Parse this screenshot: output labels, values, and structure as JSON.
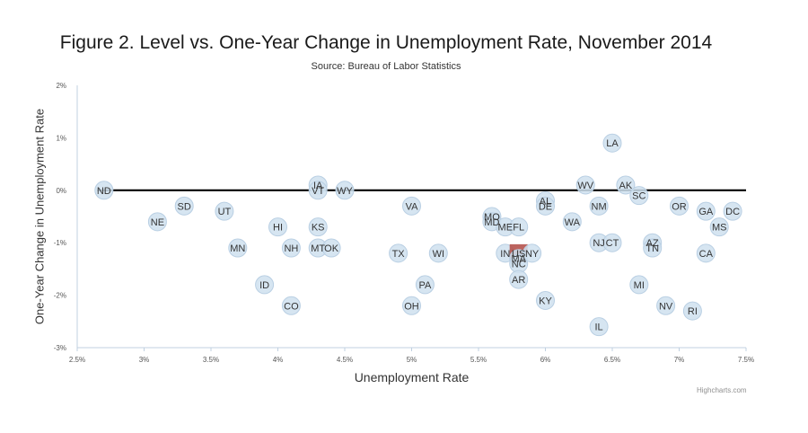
{
  "chart_data": {
    "type": "scatter",
    "title": "Figure 2. Level vs. One-Year Change in Unemployment Rate, November 2014",
    "subtitle": "Source: Bureau of Labor Statistics",
    "xlabel": "Unemployment Rate",
    "ylabel": "One-Year Change in Unemployment Rate",
    "credits": "Highcharts.com",
    "xlim": [
      2.5,
      7.5
    ],
    "ylim": [
      -3,
      2
    ],
    "xticks": [
      2.5,
      3,
      3.5,
      4,
      4.5,
      5,
      5.5,
      6,
      6.5,
      7,
      7.5
    ],
    "xtick_labels": [
      "2.5%",
      "3%",
      "3.5%",
      "4%",
      "4.5%",
      "5%",
      "5.5%",
      "6%",
      "6.5%",
      "7%",
      "7.5%"
    ],
    "yticks": [
      2,
      1,
      0,
      -1,
      -2,
      -3
    ],
    "ytick_labels": [
      "2%",
      "1%",
      "0%",
      "-1%",
      "-2%",
      "-3%"
    ],
    "zero_line": true,
    "grid": false,
    "colors": {
      "point": "#cfe0ee",
      "point_stroke": "#b9cfe3",
      "highlight": "#b5534e",
      "zero_line": "#000000",
      "axis": "#c0d0e0"
    },
    "series": [
      {
        "points": [
          {
            "label": "ND",
            "x": 2.7,
            "y": 0.0
          },
          {
            "label": "NE",
            "x": 3.1,
            "y": -0.6
          },
          {
            "label": "SD",
            "x": 3.3,
            "y": -0.3
          },
          {
            "label": "UT",
            "x": 3.6,
            "y": -0.4
          },
          {
            "label": "MN",
            "x": 3.7,
            "y": -1.1
          },
          {
            "label": "ID",
            "x": 3.9,
            "y": -1.8
          },
          {
            "label": "HI",
            "x": 4.0,
            "y": -0.7
          },
          {
            "label": "NH",
            "x": 4.1,
            "y": -1.1
          },
          {
            "label": "CO",
            "x": 4.1,
            "y": -2.2
          },
          {
            "label": "IA",
            "x": 4.3,
            "y": 0.1
          },
          {
            "label": "VT",
            "x": 4.3,
            "y": 0.0
          },
          {
            "label": "KS",
            "x": 4.3,
            "y": -0.7
          },
          {
            "label": "MT",
            "x": 4.3,
            "y": -1.1
          },
          {
            "label": "OK",
            "x": 4.4,
            "y": -1.1
          },
          {
            "label": "WY",
            "x": 4.5,
            "y": 0.0
          },
          {
            "label": "TX",
            "x": 4.9,
            "y": -1.2
          },
          {
            "label": "VA",
            "x": 5.0,
            "y": -0.3
          },
          {
            "label": "OH",
            "x": 5.0,
            "y": -2.2
          },
          {
            "label": "PA",
            "x": 5.1,
            "y": -1.8
          },
          {
            "label": "WI",
            "x": 5.2,
            "y": -1.2
          },
          {
            "label": "MO",
            "x": 5.6,
            "y": -0.5
          },
          {
            "label": "MD",
            "x": 5.6,
            "y": -0.6
          },
          {
            "label": "ME",
            "x": 5.7,
            "y": -0.7
          },
          {
            "label": "FL",
            "x": 5.8,
            "y": -0.7
          },
          {
            "label": "IN",
            "x": 5.7,
            "y": -1.2
          },
          {
            "label": "US",
            "x": 5.8,
            "y": -1.2,
            "highlight": true
          },
          {
            "label": "MA",
            "x": 5.8,
            "y": -1.3
          },
          {
            "label": "NC",
            "x": 5.8,
            "y": -1.4
          },
          {
            "label": "NY",
            "x": 5.9,
            "y": -1.2
          },
          {
            "label": "AR",
            "x": 5.8,
            "y": -1.7
          },
          {
            "label": "AL",
            "x": 6.0,
            "y": -0.2
          },
          {
            "label": "DE",
            "x": 6.0,
            "y": -0.3
          },
          {
            "label": "KY",
            "x": 6.0,
            "y": -2.1
          },
          {
            "label": "WA",
            "x": 6.2,
            "y": -0.6
          },
          {
            "label": "WV",
            "x": 6.3,
            "y": 0.1
          },
          {
            "label": "NM",
            "x": 6.4,
            "y": -0.3
          },
          {
            "label": "NJ",
            "x": 6.4,
            "y": -1.0
          },
          {
            "label": "IL",
            "x": 6.4,
            "y": -2.6
          },
          {
            "label": "LA",
            "x": 6.5,
            "y": 0.9
          },
          {
            "label": "CT",
            "x": 6.5,
            "y": -1.0
          },
          {
            "label": "AK",
            "x": 6.6,
            "y": 0.1
          },
          {
            "label": "SC",
            "x": 6.7,
            "y": -0.1
          },
          {
            "label": "MI",
            "x": 6.7,
            "y": -1.8
          },
          {
            "label": "AZ",
            "x": 6.8,
            "y": -1.0
          },
          {
            "label": "TN",
            "x": 6.8,
            "y": -1.1
          },
          {
            "label": "NV",
            "x": 6.9,
            "y": -2.2
          },
          {
            "label": "OR",
            "x": 7.0,
            "y": -0.3
          },
          {
            "label": "RI",
            "x": 7.1,
            "y": -2.3
          },
          {
            "label": "GA",
            "x": 7.2,
            "y": -0.4
          },
          {
            "label": "CA",
            "x": 7.2,
            "y": -1.2
          },
          {
            "label": "MS",
            "x": 7.3,
            "y": -0.7
          },
          {
            "label": "DC",
            "x": 7.4,
            "y": -0.4
          }
        ]
      }
    ]
  }
}
